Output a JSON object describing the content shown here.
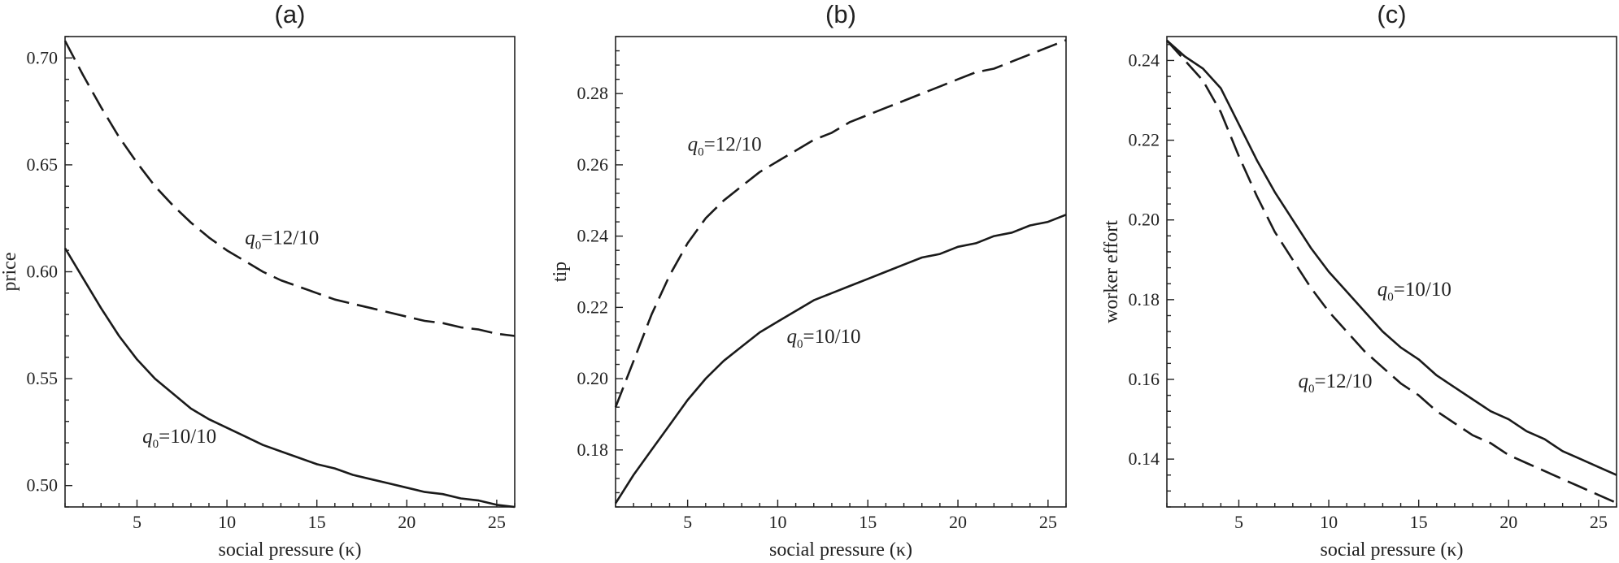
{
  "chart_data": [
    {
      "type": "line",
      "title": "(a)",
      "xlabel": "social pressure (κ)",
      "ylabel": "price",
      "xlim": [
        1,
        26
      ],
      "ylim": [
        0.49,
        0.71
      ],
      "xticks": [
        5,
        10,
        15,
        20,
        25
      ],
      "yticks": [
        0.5,
        0.55,
        0.6,
        0.65,
        0.7
      ],
      "ytick_labels": [
        "0.50",
        "0.55",
        "0.60",
        "0.65",
        "0.70"
      ],
      "grid": false,
      "series": [
        {
          "style": "dashed",
          "x": [
            1,
            2,
            3,
            4,
            5,
            6,
            7,
            8,
            9,
            10,
            11,
            12,
            13,
            14,
            15,
            16,
            17,
            18,
            19,
            20,
            21,
            22,
            23,
            24,
            25,
            26
          ],
          "values": [
            0.708,
            0.692,
            0.677,
            0.663,
            0.651,
            0.64,
            0.631,
            0.623,
            0.616,
            0.61,
            0.605,
            0.6,
            0.596,
            0.593,
            0.59,
            0.587,
            0.585,
            0.583,
            0.581,
            0.579,
            0.577,
            0.576,
            0.574,
            0.573,
            0.571,
            0.57
          ]
        },
        {
          "style": "solid",
          "x": [
            1,
            2,
            3,
            4,
            5,
            6,
            7,
            8,
            9,
            10,
            11,
            12,
            13,
            14,
            15,
            16,
            17,
            18,
            19,
            20,
            21,
            22,
            23,
            24,
            25,
            26
          ],
          "values": [
            0.611,
            0.597,
            0.583,
            0.57,
            0.559,
            0.55,
            0.543,
            0.536,
            0.531,
            0.527,
            0.523,
            0.519,
            0.516,
            0.513,
            0.51,
            0.508,
            0.505,
            0.503,
            0.501,
            0.499,
            0.497,
            0.496,
            0.494,
            0.493,
            0.491,
            0.49
          ]
        }
      ],
      "annotations": [
        {
          "prefix": "q",
          "sub": "0",
          "text": "=12/10",
          "x": 11.0,
          "y": 0.613
        },
        {
          "prefix": "q",
          "sub": "0",
          "text": "=10/10",
          "x": 5.3,
          "y": 0.52
        }
      ]
    },
    {
      "type": "line",
      "title": "(b)",
      "xlabel": "social pressure (κ)",
      "ylabel": "tip",
      "xlim": [
        1,
        26
      ],
      "ylim": [
        0.164,
        0.296
      ],
      "xticks": [
        5,
        10,
        15,
        20,
        25
      ],
      "yticks": [
        0.18,
        0.2,
        0.22,
        0.24,
        0.26,
        0.28
      ],
      "ytick_labels": [
        "0.18",
        "0.20",
        "0.22",
        "0.24",
        "0.26",
        "0.28"
      ],
      "grid": false,
      "series": [
        {
          "style": "dashed",
          "x": [
            1,
            2,
            3,
            4,
            5,
            6,
            7,
            8,
            9,
            10,
            11,
            12,
            13,
            14,
            15,
            16,
            17,
            18,
            19,
            20,
            21,
            22,
            23,
            24,
            25,
            26
          ],
          "values": [
            0.192,
            0.205,
            0.218,
            0.229,
            0.238,
            0.245,
            0.25,
            0.254,
            0.258,
            0.261,
            0.264,
            0.267,
            0.269,
            0.272,
            0.274,
            0.276,
            0.278,
            0.28,
            0.282,
            0.284,
            0.286,
            0.287,
            0.289,
            0.291,
            0.293,
            0.295
          ]
        },
        {
          "style": "solid",
          "x": [
            1,
            2,
            3,
            4,
            5,
            6,
            7,
            8,
            9,
            10,
            11,
            12,
            13,
            14,
            15,
            16,
            17,
            18,
            19,
            20,
            21,
            22,
            23,
            24,
            25,
            26
          ],
          "values": [
            0.165,
            0.173,
            0.18,
            0.187,
            0.194,
            0.2,
            0.205,
            0.209,
            0.213,
            0.216,
            0.219,
            0.222,
            0.224,
            0.226,
            0.228,
            0.23,
            0.232,
            0.234,
            0.235,
            0.237,
            0.238,
            0.24,
            0.241,
            0.243,
            0.244,
            0.246
          ]
        }
      ],
      "annotations": [
        {
          "prefix": "q",
          "sub": "0",
          "text": "=12/10",
          "x": 5.0,
          "y": 0.264
        },
        {
          "prefix": "q",
          "sub": "0",
          "text": "=10/10",
          "x": 10.5,
          "y": 0.21
        }
      ]
    },
    {
      "type": "line",
      "title": "(c)",
      "xlabel": "social pressure (κ)",
      "ylabel": "worker effort",
      "xlim": [
        1,
        26
      ],
      "ylim": [
        0.128,
        0.246
      ],
      "xticks": [
        5,
        10,
        15,
        20,
        25
      ],
      "yticks": [
        0.14,
        0.16,
        0.18,
        0.2,
        0.22,
        0.24
      ],
      "ytick_labels": [
        "0.14",
        "0.16",
        "0.18",
        "0.20",
        "0.22",
        "0.24"
      ],
      "grid": false,
      "series": [
        {
          "style": "solid",
          "x": [
            1,
            2,
            3,
            4,
            5,
            6,
            7,
            8,
            9,
            10,
            11,
            12,
            13,
            14,
            15,
            16,
            17,
            18,
            19,
            20,
            21,
            22,
            23,
            24,
            25,
            26
          ],
          "values": [
            0.245,
            0.241,
            0.238,
            0.233,
            0.224,
            0.215,
            0.207,
            0.2,
            0.193,
            0.187,
            0.182,
            0.177,
            0.172,
            0.168,
            0.165,
            0.161,
            0.158,
            0.155,
            0.152,
            0.15,
            0.147,
            0.145,
            0.142,
            0.14,
            0.138,
            0.136
          ]
        },
        {
          "style": "dashed",
          "x": [
            1,
            2,
            3,
            4,
            5,
            6,
            7,
            8,
            9,
            10,
            11,
            12,
            13,
            14,
            15,
            16,
            17,
            18,
            19,
            20,
            21,
            22,
            23,
            24,
            25,
            26
          ],
          "values": [
            0.245,
            0.24,
            0.235,
            0.227,
            0.216,
            0.206,
            0.197,
            0.19,
            0.183,
            0.177,
            0.172,
            0.167,
            0.163,
            0.159,
            0.156,
            0.152,
            0.149,
            0.146,
            0.144,
            0.141,
            0.139,
            0.137,
            0.135,
            0.133,
            0.131,
            0.129
          ]
        }
      ],
      "annotations": [
        {
          "prefix": "q",
          "sub": "0",
          "text": "=10/10",
          "x": 12.7,
          "y": 0.181
        },
        {
          "prefix": "q",
          "sub": "0",
          "text": "=12/10",
          "x": 8.3,
          "y": 0.158
        }
      ]
    }
  ]
}
